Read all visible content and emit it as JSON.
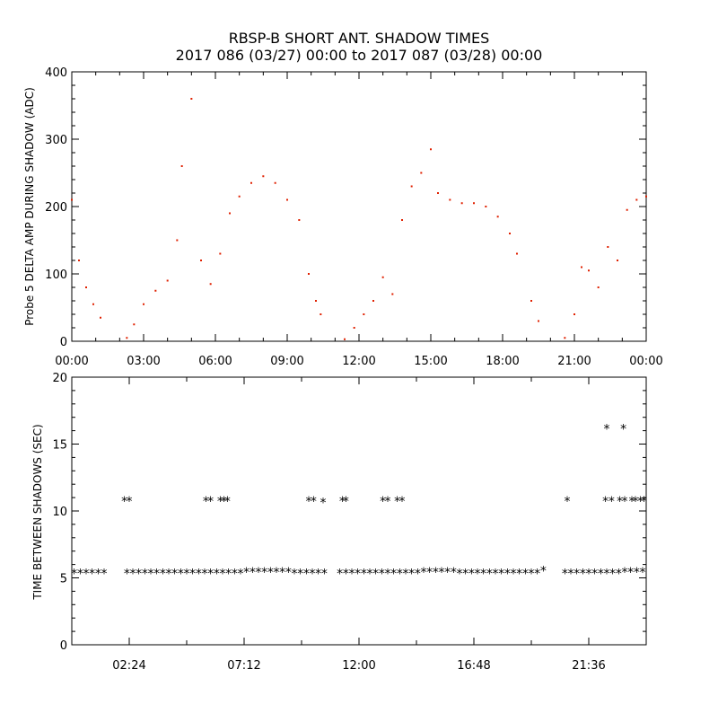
{
  "title_line1": "RBSP-B SHORT ANT. SHADOW TIMES",
  "title_line2": "2017 086 (03/27) 00:00 to 2017 087 (03/28) 00:00",
  "colors": {
    "points": "#e02000",
    "stars": "#000000",
    "axes": "#000000"
  },
  "chart_data": [
    {
      "type": "scatter",
      "ylabel": "Probe 5 DELTA AMP DURING SHADOW (ADC)",
      "xlim_hours": [
        0,
        24
      ],
      "ylim": [
        0,
        400
      ],
      "x_tick_labels": [
        "00:00",
        "03:00",
        "06:00",
        "09:00",
        "12:00",
        "15:00",
        "18:00",
        "21:00",
        "00:00"
      ],
      "y_tick_labels": [
        "0",
        "100",
        "200",
        "300",
        "400"
      ],
      "grid": false,
      "series": [
        {
          "x_hours": [
            0.0,
            0.3,
            0.6,
            0.9,
            1.2,
            2.3,
            2.6,
            3.0,
            3.5,
            4.0,
            4.4,
            4.6,
            5.0,
            5.4,
            5.8,
            6.2,
            6.6,
            7.0,
            7.5,
            8.0,
            8.5,
            9.0,
            9.5,
            9.9,
            10.2,
            10.4,
            11.4,
            11.8,
            12.2,
            12.6,
            13.0,
            13.4,
            13.8,
            14.2,
            14.6,
            15.0,
            15.3,
            15.8,
            16.3,
            16.8,
            17.3,
            17.8,
            18.3,
            18.6,
            19.2,
            19.5,
            20.6,
            21.0,
            21.3,
            21.6,
            22.0,
            22.4,
            22.8,
            23.2,
            23.6,
            24.0
          ],
          "y": [
            210,
            120,
            80,
            55,
            35,
            5,
            25,
            55,
            75,
            90,
            150,
            260,
            360,
            120,
            85,
            130,
            190,
            215,
            235,
            245,
            235,
            210,
            180,
            100,
            60,
            40,
            3,
            20,
            40,
            60,
            95,
            70,
            180,
            230,
            250,
            285,
            220,
            210,
            205,
            205,
            200,
            185,
            160,
            130,
            60,
            30,
            5,
            40,
            110,
            105,
            80,
            140,
            120,
            195,
            210,
            215
          ]
        }
      ]
    },
    {
      "type": "scatter",
      "ylabel": "TIME BETWEEN SHADOWS (SEC)",
      "xlim_hours": [
        0,
        24
      ],
      "ylim": [
        0,
        20
      ],
      "x_tick_labels": [
        "02:24",
        "07:12",
        "12:00",
        "16:48",
        "21:36"
      ],
      "y_tick_labels": [
        "0",
        "5",
        "10",
        "15",
        "20"
      ],
      "grid": false,
      "marker": "asterisk",
      "series": [
        {
          "name": "baseline",
          "x_hours": [
            0.1,
            0.35,
            0.6,
            0.85,
            1.1,
            1.35,
            2.3,
            2.55,
            2.8,
            3.05,
            3.3,
            3.55,
            3.8,
            4.05,
            4.3,
            4.55,
            4.8,
            5.05,
            5.3,
            5.55,
            5.8,
            6.05,
            6.3,
            6.55,
            6.8,
            7.05,
            7.3,
            7.55,
            7.8,
            8.05,
            8.3,
            8.55,
            8.8,
            9.05,
            9.3,
            9.55,
            9.8,
            10.05,
            10.3,
            10.55,
            11.2,
            11.45,
            11.7,
            11.95,
            12.2,
            12.45,
            12.7,
            12.95,
            13.2,
            13.45,
            13.7,
            13.95,
            14.2,
            14.45,
            14.7,
            14.95,
            15.2,
            15.45,
            15.7,
            15.95,
            16.2,
            16.45,
            16.7,
            16.95,
            17.2,
            17.45,
            17.7,
            17.95,
            18.2,
            18.45,
            18.7,
            18.95,
            19.2,
            19.45,
            20.6,
            20.85,
            21.1,
            21.35,
            21.6,
            21.85,
            22.1,
            22.35,
            22.6,
            22.85,
            23.1,
            23.35,
            23.6,
            23.85
          ],
          "y": [
            5.4,
            5.4,
            5.4,
            5.4,
            5.4,
            5.4,
            5.4,
            5.4,
            5.4,
            5.4,
            5.4,
            5.4,
            5.4,
            5.4,
            5.4,
            5.4,
            5.4,
            5.4,
            5.4,
            5.4,
            5.4,
            5.4,
            5.4,
            5.4,
            5.4,
            5.4,
            5.5,
            5.5,
            5.5,
            5.5,
            5.5,
            5.5,
            5.5,
            5.5,
            5.4,
            5.4,
            5.4,
            5.4,
            5.4,
            5.4,
            5.4,
            5.4,
            5.4,
            5.4,
            5.4,
            5.4,
            5.4,
            5.4,
            5.4,
            5.4,
            5.4,
            5.4,
            5.4,
            5.4,
            5.5,
            5.5,
            5.5,
            5.5,
            5.5,
            5.5,
            5.4,
            5.4,
            5.4,
            5.4,
            5.4,
            5.4,
            5.4,
            5.4,
            5.4,
            5.4,
            5.4,
            5.4,
            5.4,
            5.4,
            5.4,
            5.4,
            5.4,
            5.4,
            5.4,
            5.4,
            5.4,
            5.4,
            5.4,
            5.4,
            5.5,
            5.5,
            5.5,
            5.5
          ]
        },
        {
          "name": "gaps",
          "x_hours": [
            2.2,
            2.4,
            5.6,
            5.8,
            6.2,
            6.35,
            6.5,
            9.9,
            10.1,
            10.5,
            11.3,
            11.45,
            13.0,
            13.2,
            13.6,
            13.8,
            19.7,
            20.7,
            22.3,
            22.55,
            22.9,
            23.1,
            23.4,
            23.55,
            23.75,
            23.9,
            22.35,
            23.05
          ],
          "y": [
            10.8,
            10.8,
            10.8,
            10.8,
            10.8,
            10.8,
            10.8,
            10.8,
            10.8,
            10.7,
            10.8,
            10.8,
            10.8,
            10.8,
            10.8,
            10.8,
            5.6,
            10.8,
            10.8,
            10.8,
            10.8,
            10.8,
            10.8,
            10.8,
            10.8,
            10.8,
            16.2,
            16.2
          ]
        }
      ]
    }
  ]
}
